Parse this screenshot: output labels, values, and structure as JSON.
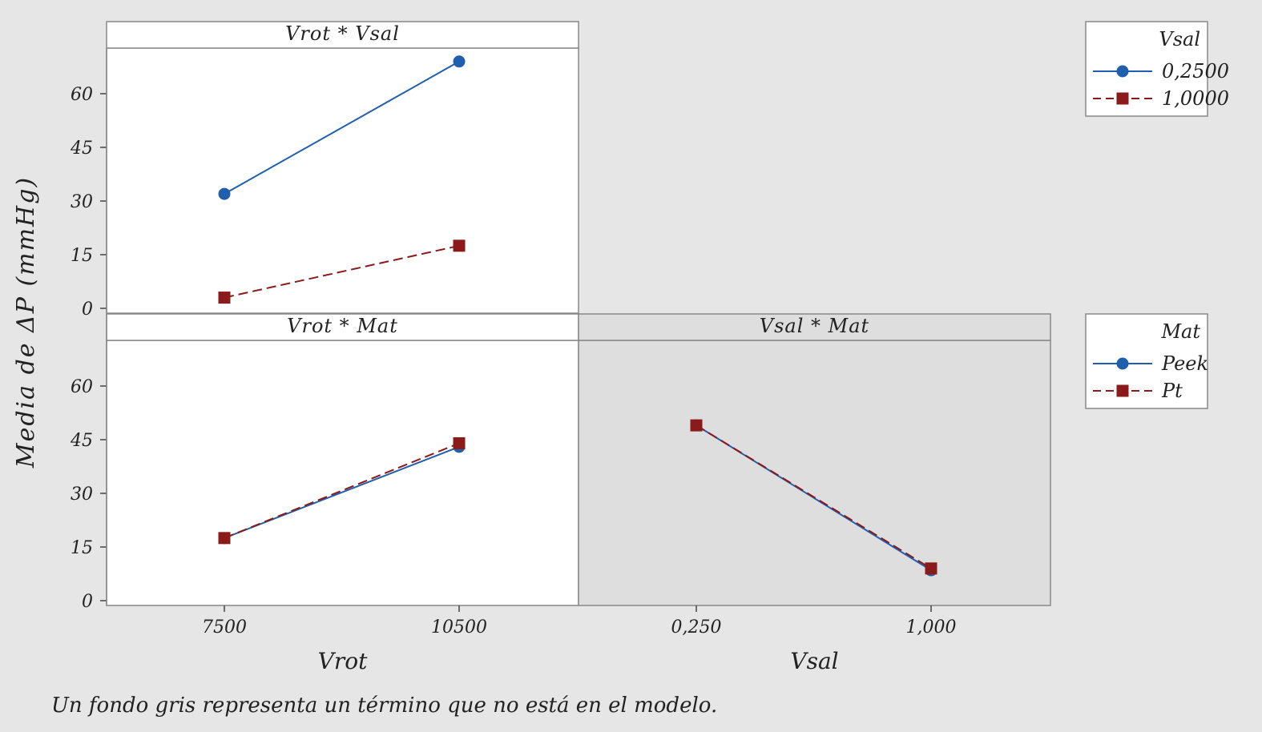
{
  "footnote": "Un fondo gris representa un término que no está en el modelo.",
  "colors": {
    "background": "#e6e6e6",
    "panel_active": "#ffffff",
    "panel_inactive": "#dedede",
    "series_1": "#1f5fae",
    "series_2": "#8b1a1a"
  },
  "chart_data": {
    "type": "line",
    "title": "",
    "ylabel": "Media de ΔP (mmHg)",
    "ylim": [
      0,
      70
    ],
    "yticks": [
      0,
      15,
      30,
      45,
      60
    ],
    "x_axes": [
      {
        "label": "Vrot",
        "ticks": [
          "7500",
          "10500"
        ]
      },
      {
        "label": "Vsal",
        "ticks": [
          "0,250",
          "1,000"
        ]
      }
    ],
    "panels": [
      {
        "title": "Vrot * Vsal",
        "x_categories": [
          "7500",
          "10500"
        ],
        "in_model": true,
        "legend_ref": "Vsal",
        "series": [
          {
            "name": "0,2500",
            "marker": "circle",
            "line": "solid",
            "color": "#1f5fae",
            "values": [
              32,
              69
            ]
          },
          {
            "name": "1,0000",
            "marker": "square",
            "line": "dashed",
            "color": "#8b1a1a",
            "values": [
              3,
              17.5
            ]
          }
        ]
      },
      {
        "title": "Vrot * Mat",
        "x_categories": [
          "7500",
          "10500"
        ],
        "in_model": true,
        "legend_ref": "Mat",
        "series": [
          {
            "name": "Peek",
            "marker": "circle",
            "line": "solid",
            "color": "#1f5fae",
            "values": [
              17.5,
              43
            ]
          },
          {
            "name": "Pt",
            "marker": "square",
            "line": "dashed",
            "color": "#8b1a1a",
            "values": [
              17.5,
              44
            ]
          }
        ]
      },
      {
        "title": "Vsal * Mat",
        "x_categories": [
          "0,250",
          "1,000"
        ],
        "in_model": false,
        "legend_ref": "Mat",
        "series": [
          {
            "name": "Peek",
            "marker": "circle",
            "line": "solid",
            "color": "#1f5fae",
            "values": [
              49,
              8.5
            ]
          },
          {
            "name": "Pt",
            "marker": "square",
            "line": "dashed",
            "color": "#8b1a1a",
            "values": [
              49,
              9
            ]
          }
        ]
      }
    ],
    "legends": [
      {
        "title": "Vsal",
        "entries": [
          {
            "label": "0,2500",
            "marker": "circle",
            "line": "solid",
            "color": "#1f5fae"
          },
          {
            "label": "1,0000",
            "marker": "square",
            "line": "dashed",
            "color": "#8b1a1a"
          }
        ]
      },
      {
        "title": "Mat",
        "entries": [
          {
            "label": "Peek",
            "marker": "circle",
            "line": "solid",
            "color": "#1f5fae"
          },
          {
            "label": "Pt",
            "marker": "square",
            "line": "dashed",
            "color": "#8b1a1a"
          }
        ]
      }
    ]
  }
}
